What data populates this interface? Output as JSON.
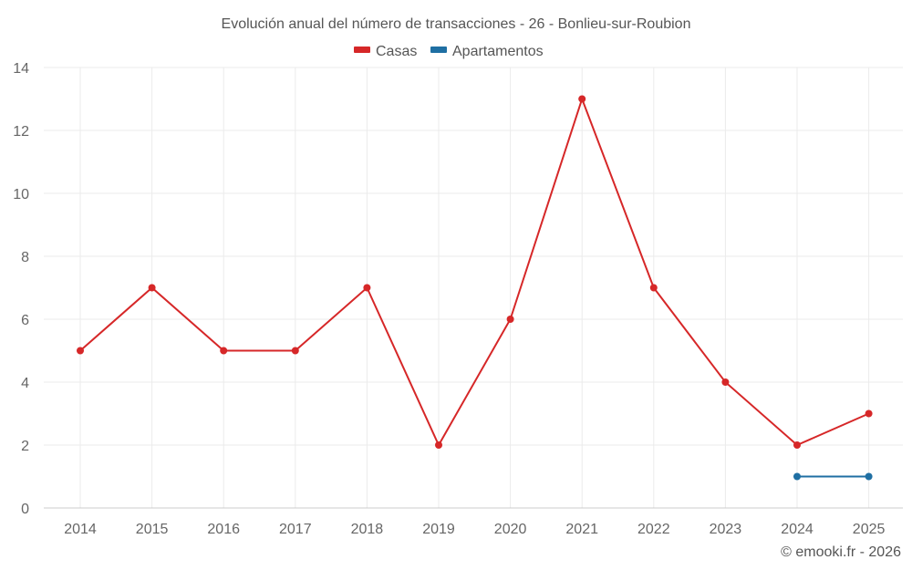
{
  "chart_data": {
    "type": "line",
    "title": "Evolución anual del número de transacciones - 26 - Bonlieu-sur-Roubion",
    "categories": [
      "2014",
      "2015",
      "2016",
      "2017",
      "2018",
      "2019",
      "2020",
      "2021",
      "2022",
      "2023",
      "2024",
      "2025"
    ],
    "series": [
      {
        "name": "Casas",
        "color": "#d62728",
        "values": [
          5,
          7,
          5,
          5,
          7,
          2,
          6,
          13,
          7,
          4,
          2,
          3
        ]
      },
      {
        "name": "Apartamentos",
        "color": "#1f6fa3",
        "values": [
          null,
          null,
          null,
          null,
          null,
          null,
          null,
          null,
          null,
          null,
          1,
          1
        ]
      }
    ],
    "ylim": [
      0,
      14
    ],
    "yticks": [
      0,
      2,
      4,
      6,
      8,
      10,
      12,
      14
    ],
    "legend_position": "top-center",
    "grid": true
  },
  "credit": "© emooki.fr - 2026"
}
